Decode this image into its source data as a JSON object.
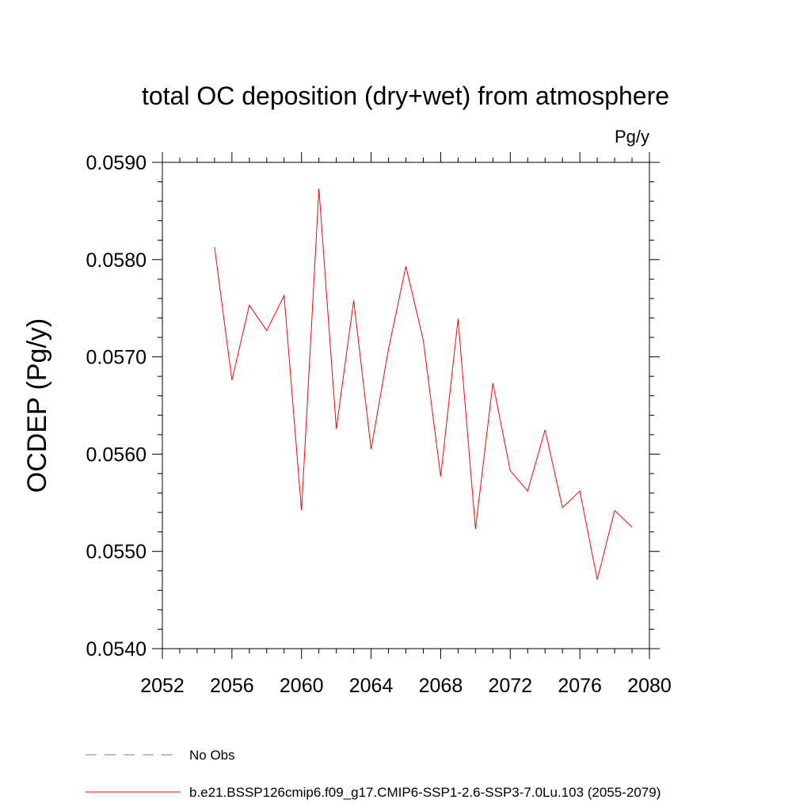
{
  "chart_data": {
    "type": "line",
    "title": "total OC deposition (dry+wet) from atmosphere",
    "units": "Pg/y",
    "xlabel": "",
    "ylabel": "OCDEP  (Pg/y)",
    "xlim": [
      2052,
      2080
    ],
    "ylim": [
      0.054,
      0.059
    ],
    "x_ticks": [
      2052,
      2056,
      2060,
      2064,
      2068,
      2072,
      2076,
      2080
    ],
    "x_tick_labels": [
      "2052",
      "2056",
      "2060",
      "2064",
      "2068",
      "2072",
      "2076",
      "2080"
    ],
    "y_ticks": [
      0.054,
      0.055,
      0.056,
      0.057,
      0.058,
      0.059
    ],
    "y_tick_labels": [
      "0.0540",
      "0.0550",
      "0.0560",
      "0.0570",
      "0.0580",
      "0.0590"
    ],
    "grid": false,
    "legend_position": "bottom",
    "series": [
      {
        "name": "No Obs",
        "color": "#7b68b0",
        "style": "dashed",
        "x": [],
        "values": []
      },
      {
        "name": "b.e21.BSSP126cmip6.f09_g17.CMIP6-SSP1-2.6-SSP3-7.0Lu.103 (2055-2079)",
        "color": "#ff0000",
        "style": "solid",
        "x": [
          2055,
          2056,
          2057,
          2058,
          2059,
          2060,
          2061,
          2062,
          2063,
          2064,
          2065,
          2066,
          2067,
          2068,
          2069,
          2070,
          2071,
          2072,
          2073,
          2074,
          2075,
          2076,
          2077,
          2078,
          2079
        ],
        "values": [
          0.05813,
          0.05676,
          0.05753,
          0.05727,
          0.05763,
          0.05542,
          0.05873,
          0.05626,
          0.05758,
          0.05605,
          0.05708,
          0.05793,
          0.05717,
          0.05577,
          0.05739,
          0.05523,
          0.05673,
          0.05583,
          0.05562,
          0.05625,
          0.05545,
          0.05562,
          0.05471,
          0.05542,
          0.05525
        ]
      }
    ]
  }
}
